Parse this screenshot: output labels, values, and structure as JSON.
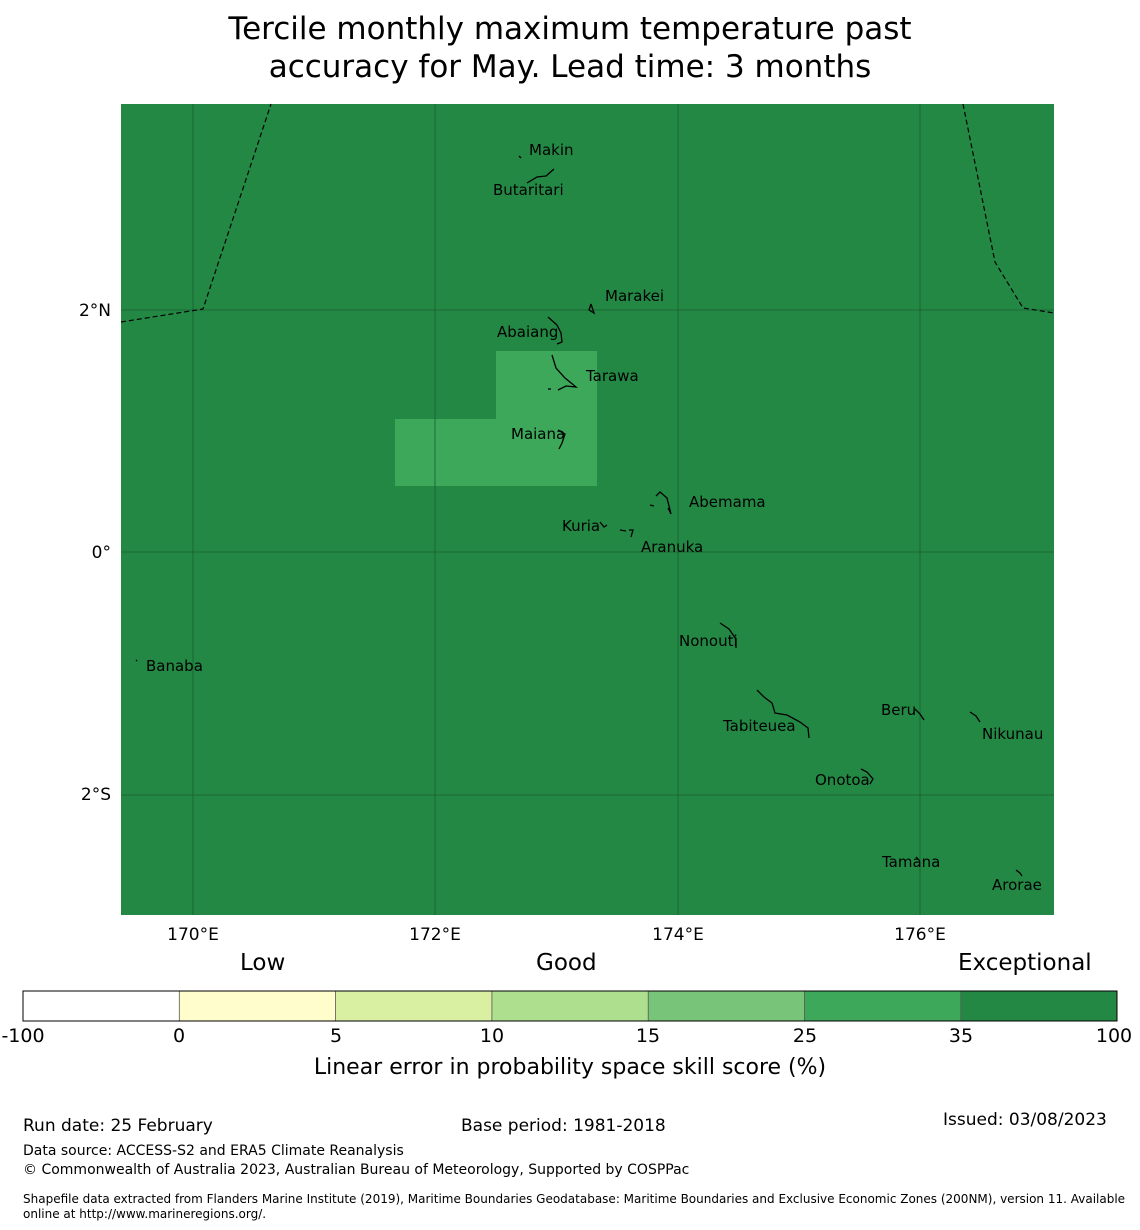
{
  "title_line1": "Tercile monthly maximum temperature past",
  "title_line2": "accuracy for May. Lead time: 3 months",
  "map": {
    "lat_labels": [
      "2°N",
      "0°",
      "2°S"
    ],
    "lon_labels": [
      "170°E",
      "172°E",
      "174°E",
      "176°E"
    ],
    "background_category": "Exceptional (35 to 100)",
    "background_color": "#248845",
    "patch_category": "35",
    "patch_color": "#3DA75A",
    "islands": [
      "Makin",
      "Butaritari",
      "Marakei",
      "Abaiang",
      "Tarawa",
      "Maiana",
      "Abemama",
      "Kuria",
      "Aranuka",
      "Nonouti",
      "Banaba",
      "Beru",
      "Nikunau",
      "Tabiteuea",
      "Onotoa",
      "Tamana",
      "Arorae"
    ]
  },
  "legend_words": {
    "low": "Low",
    "good": "Good",
    "exceptional": "Exceptional"
  },
  "colorbar": {
    "ticks": [
      "-100",
      "0",
      "5",
      "10",
      "15",
      "25",
      "35",
      "100"
    ],
    "colors": [
      "#ffffff",
      "#fffdcb",
      "#d9efa2",
      "#addf8e",
      "#78c57a",
      "#3da75a",
      "#248845"
    ],
    "label": "Linear error in probability space skill score (%)"
  },
  "footer": {
    "run_date": "Run date: 25 February",
    "base_period": "Base period: 1981-2018",
    "issued": "Issued: 03/08/2023",
    "data_source": "Data source: ACCESS-S2 and ERA5 Climate Reanalysis",
    "copyright": "© Commonwealth of Australia 2023, Australian Bureau of Meteorology, Supported by COSPPac",
    "shapefile": "Shapefile data extracted from Flanders Marine Institute (2019), Maritime Boundaries Geodatabase: Maritime Boundaries and Exclusive Economic Zones (200NM), version 11. Available online at http://www.marineregions.org/."
  }
}
